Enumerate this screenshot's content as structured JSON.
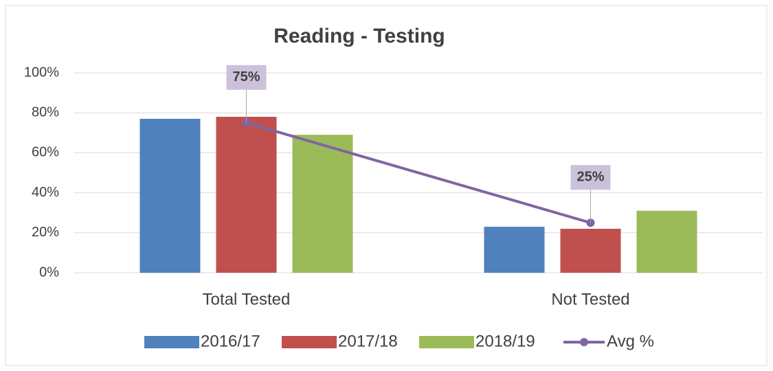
{
  "chart_data": {
    "type": "bar",
    "title": "Reading - Testing",
    "categories": [
      "Total Tested",
      "Not Tested"
    ],
    "series": [
      {
        "name": "2016/17",
        "color": "#4f81bd",
        "values": [
          77,
          23
        ]
      },
      {
        "name": "2017/18",
        "color": "#c0504d",
        "values": [
          78,
          22
        ]
      },
      {
        "name": "2018/19",
        "color": "#9bbb59",
        "values": [
          69,
          31
        ]
      },
      {
        "name": "Avg %",
        "type": "line",
        "color": "#8064a2",
        "values": [
          75,
          25
        ],
        "value_labels": [
          "75%",
          "25%"
        ]
      }
    ],
    "ylim": [
      0,
      100
    ],
    "yticks": [
      {
        "value": 0,
        "label": "0%"
      },
      {
        "value": 20,
        "label": "20%"
      },
      {
        "value": 40,
        "label": "40%"
      },
      {
        "value": 60,
        "label": "60%"
      },
      {
        "value": 80,
        "label": "80%"
      },
      {
        "value": 100,
        "label": "100%"
      }
    ],
    "grid": true,
    "legend": "bottom"
  }
}
